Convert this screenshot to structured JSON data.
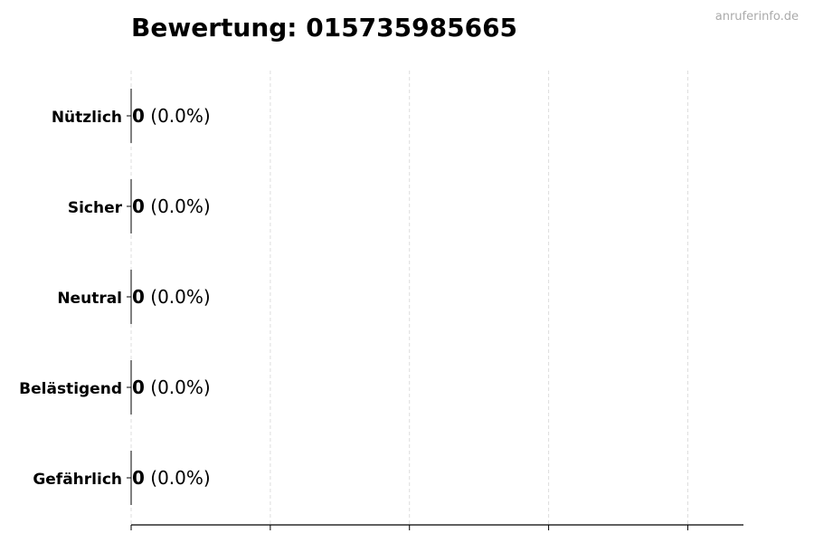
{
  "chart_data": {
    "type": "bar",
    "orientation": "horizontal",
    "title": "Bewertung: 015735985665",
    "watermark": "anruferinfo.de",
    "categories": [
      "Nützlich",
      "Sicher",
      "Neutral",
      "Belästigend",
      "Gefährlich"
    ],
    "values": [
      0,
      0,
      0,
      0,
      0
    ],
    "labels": [
      {
        "count": "0",
        "pct": "(0.0%)"
      },
      {
        "count": "0",
        "pct": "(0.0%)"
      },
      {
        "count": "0",
        "pct": "(0.0%)"
      },
      {
        "count": "0",
        "pct": "(0.0%)"
      },
      {
        "count": "0",
        "pct": "(0.0%)"
      }
    ],
    "xlim": [
      0,
      4.4
    ],
    "xticks": [
      0,
      1,
      2,
      3,
      4
    ],
    "grid": "x dashed",
    "colors": {
      "grid": "#dddddd",
      "bar_edge": "#000000",
      "watermark": "#aaaaaa"
    }
  }
}
